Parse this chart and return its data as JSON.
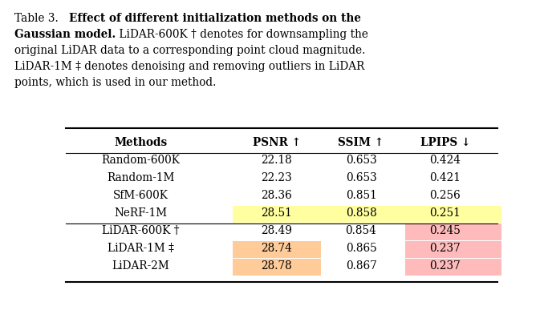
{
  "caption_lines": [
    [
      [
        "Table 3.   ",
        false
      ],
      [
        "Effect of different initialization methods on the",
        true
      ]
    ],
    [
      [
        "Gaussian model.",
        true
      ],
      [
        " LiDAR-600K † denotes for downsampling the",
        false
      ]
    ],
    [
      [
        "original LiDAR data to a corresponding point cloud magnitude.",
        false
      ]
    ],
    [
      [
        "LiDAR-1M ‡ denotes denoising and removing outliers in LiDAR",
        false
      ]
    ],
    [
      [
        "points, which is used in our method.",
        false
      ]
    ]
  ],
  "headers": [
    "Methods",
    "PSNR ↑",
    "SSIM ↑",
    "LPIPS ↓"
  ],
  "rows": [
    {
      "method": "Random-600K",
      "psnr": "22.18",
      "ssim": "0.653",
      "lpips": "0.424"
    },
    {
      "method": "Random-1M",
      "psnr": "22.23",
      "ssim": "0.653",
      "lpips": "0.421"
    },
    {
      "method": "SfM-600K",
      "psnr": "28.36",
      "ssim": "0.851",
      "lpips": "0.256"
    },
    {
      "method": "NeRF-1M",
      "psnr": "28.51",
      "ssim": "0.858",
      "lpips": "0.251"
    },
    {
      "method": "LiDAR-600K †",
      "psnr": "28.49",
      "ssim": "0.854",
      "lpips": "0.245"
    },
    {
      "method": "LiDAR-1M ‡",
      "psnr": "28.74",
      "ssim": "0.865",
      "lpips": "0.237"
    },
    {
      "method": "LiDAR-2M",
      "psnr": "28.78",
      "ssim": "0.867",
      "lpips": "0.237"
    }
  ],
  "cell_highlights": {
    "3": {
      "1": "#ffffa0",
      "2": "#ffffa0",
      "3": "#ffffa0"
    },
    "4": {
      "3": "#ffbbbb"
    },
    "5": {
      "1": "#ffcc99",
      "3": "#ffbbbb"
    },
    "6": {
      "1": "#ffcc99",
      "3": "#ffbbbb"
    }
  },
  "separator_after_row": 3,
  "bg_color": "#ffffff",
  "caption_fontsize": 9.8,
  "table_fontsize": 9.8
}
